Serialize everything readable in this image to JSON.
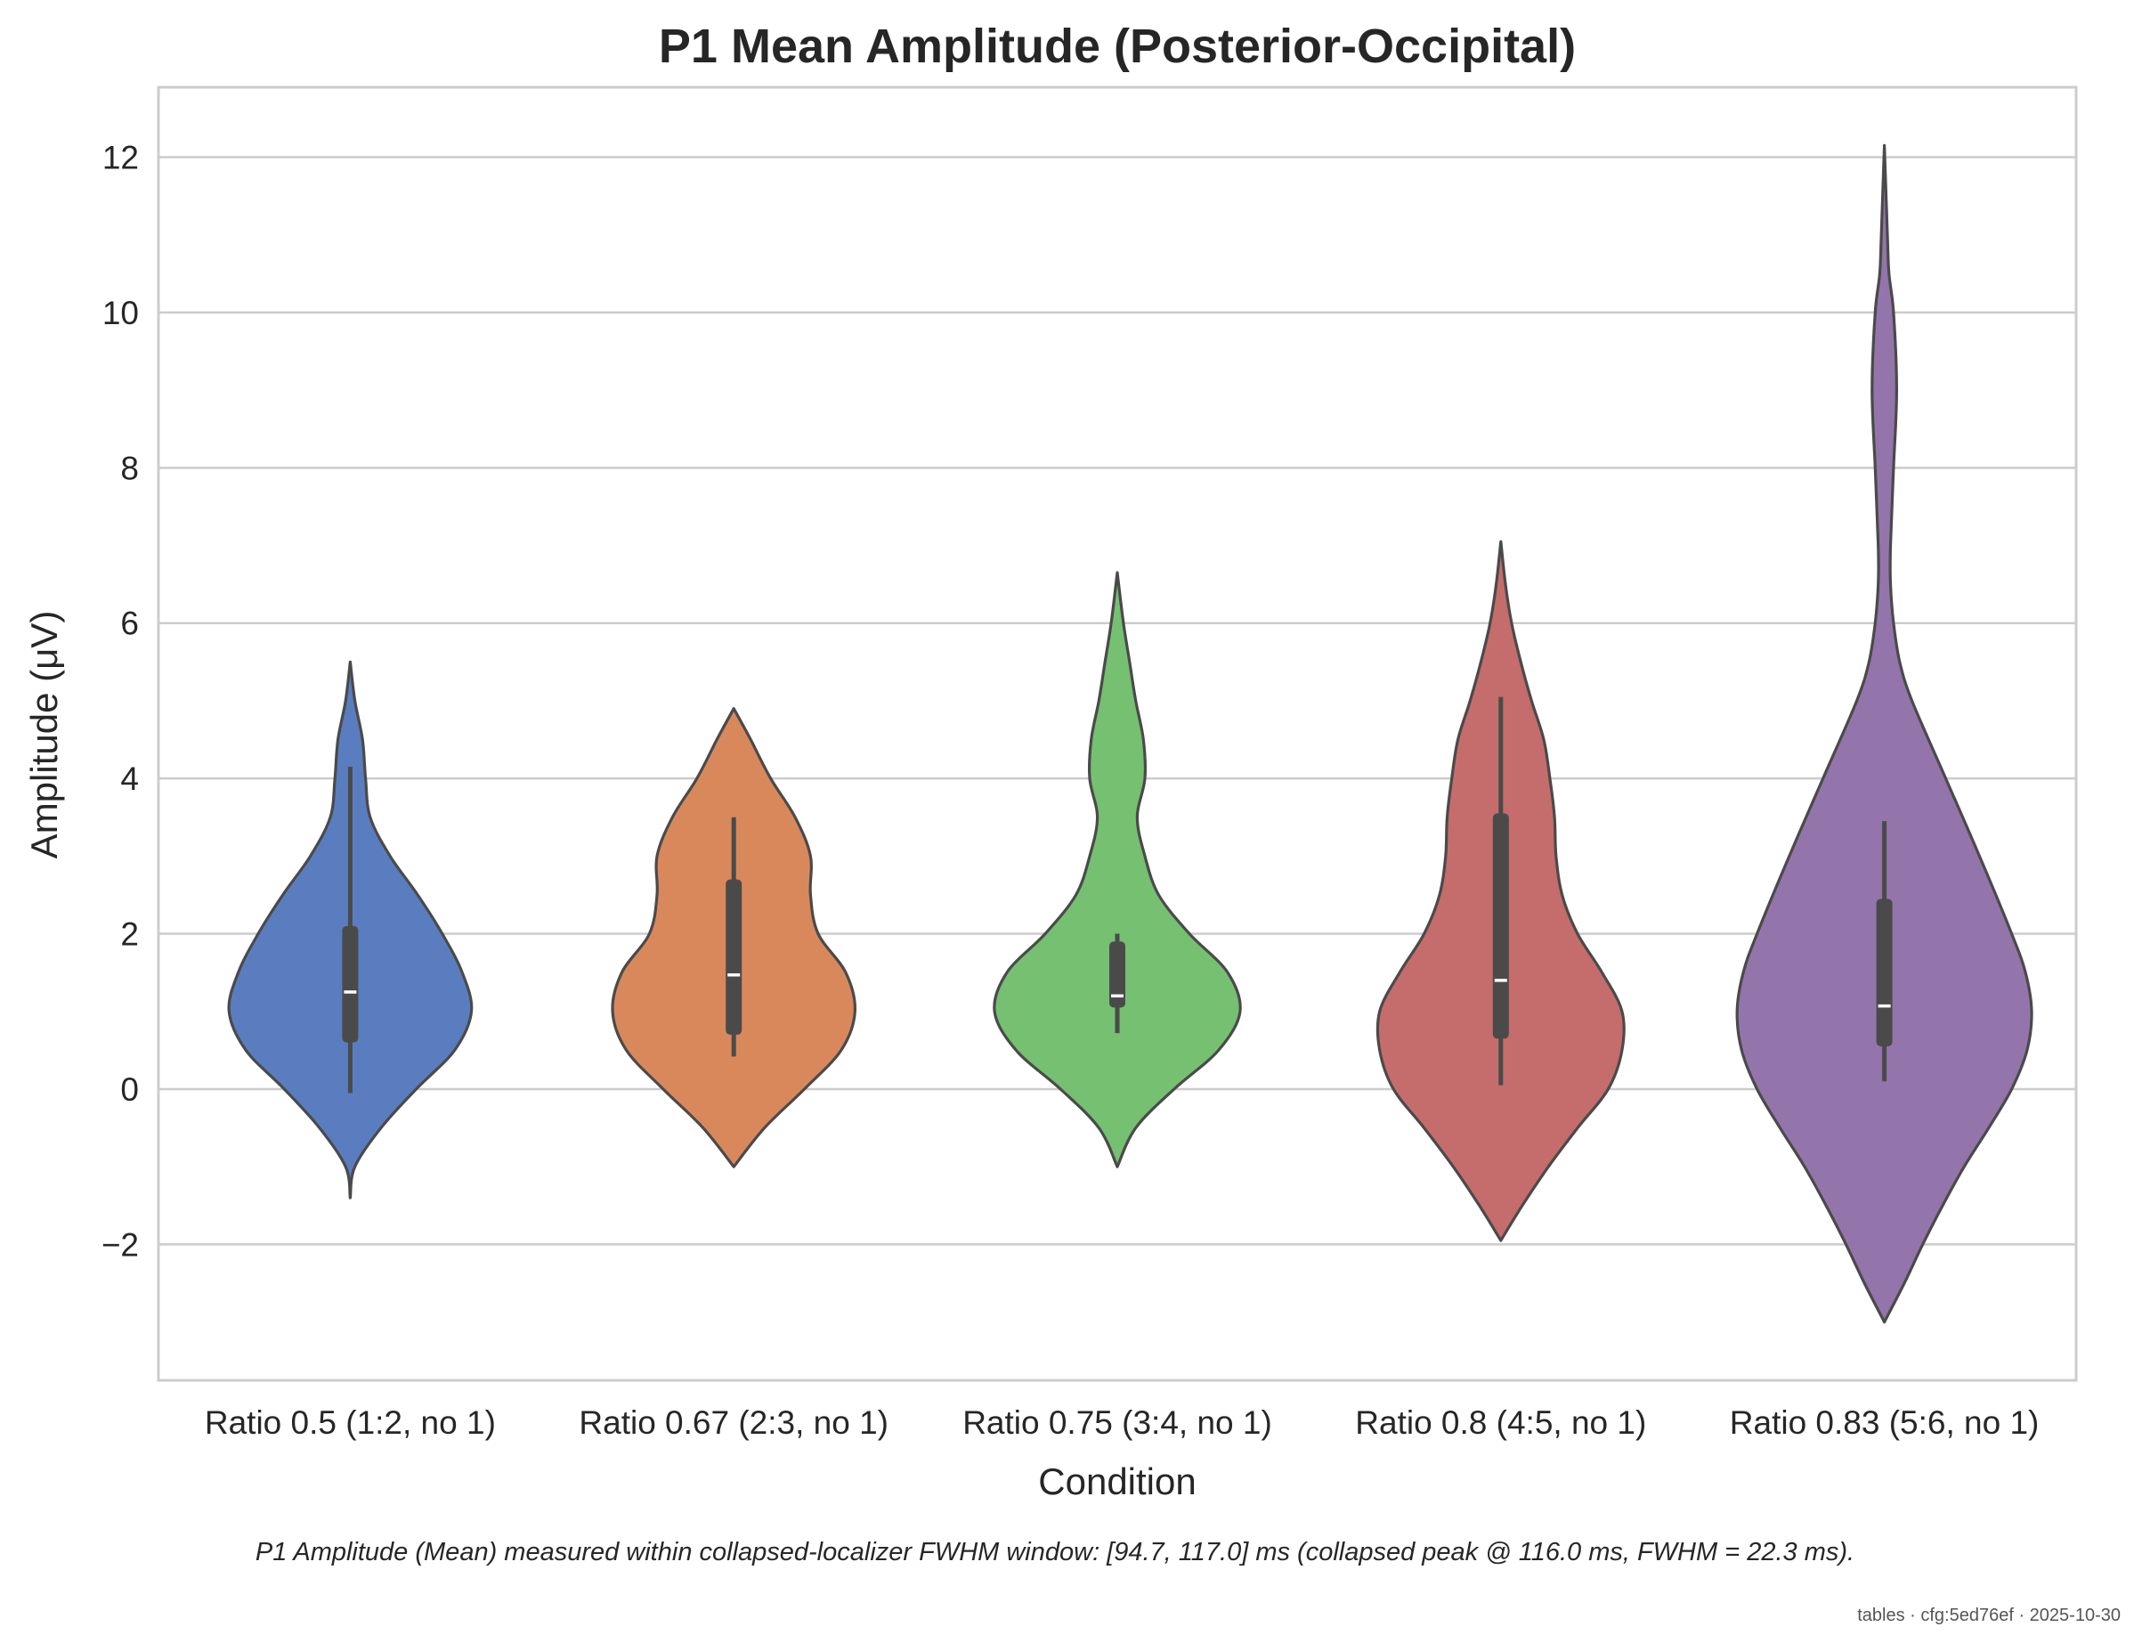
{
  "chart_data": {
    "type": "violin",
    "title": "P1 Mean Amplitude (Posterior-Occipital)",
    "xlabel": "Condition",
    "ylabel": "Amplitude (μV)",
    "ylim": [
      -3.75,
      12.9
    ],
    "yticks": [
      -2,
      0,
      2,
      4,
      6,
      8,
      10,
      12
    ],
    "ytick_labels": [
      "−2",
      "0",
      "2",
      "4",
      "6",
      "8",
      "10",
      "12"
    ],
    "grid": "horizontal",
    "categories": [
      "Ratio 0.5 (1:2, no 1)",
      "Ratio 0.67 (2:3, no 1)",
      "Ratio 0.75 (3:4, no 1)",
      "Ratio 0.8 (4:5, no 1)",
      "Ratio 0.83 (5:6, no 1)"
    ],
    "series": [
      {
        "category": "Ratio 0.5 (1:2, no 1)",
        "color": "#5a7dc0",
        "median": 1.25,
        "q1": 0.6,
        "q3": 2.1,
        "whisker_low": -0.05,
        "whisker_high": 4.15,
        "density": [
          [
            -1.4,
            0
          ],
          [
            -1.0,
            0.03
          ],
          [
            -0.5,
            0.2
          ],
          [
            0,
            0.43
          ],
          [
            0.5,
            0.68
          ],
          [
            1.0,
            0.79
          ],
          [
            1.5,
            0.73
          ],
          [
            2.0,
            0.6
          ],
          [
            2.5,
            0.44
          ],
          [
            3.0,
            0.26
          ],
          [
            3.5,
            0.13
          ],
          [
            4.0,
            0.1
          ],
          [
            4.5,
            0.08
          ],
          [
            5.0,
            0.03
          ],
          [
            5.5,
            0
          ]
        ]
      },
      {
        "category": "Ratio 0.67 (2:3, no 1)",
        "color": "#d9885c",
        "median": 1.47,
        "q1": 0.7,
        "q3": 2.7,
        "whisker_low": 0.42,
        "whisker_high": 3.5,
        "density": [
          [
            -1.0,
            0
          ],
          [
            -0.5,
            0.2
          ],
          [
            0,
            0.46
          ],
          [
            0.5,
            0.7
          ],
          [
            1.0,
            0.79
          ],
          [
            1.5,
            0.73
          ],
          [
            2.0,
            0.55
          ],
          [
            2.5,
            0.5
          ],
          [
            3.0,
            0.5
          ],
          [
            3.5,
            0.4
          ],
          [
            4.0,
            0.24
          ],
          [
            4.5,
            0.11
          ],
          [
            4.9,
            0
          ]
        ]
      },
      {
        "category": "Ratio 0.75 (3:4, no 1)",
        "color": "#75c071",
        "median": 1.2,
        "q1": 1.05,
        "q3": 1.9,
        "whisker_low": 0.72,
        "whisker_high": 2.0,
        "density": [
          [
            -1.0,
            0
          ],
          [
            -0.5,
            0.12
          ],
          [
            0,
            0.37
          ],
          [
            0.5,
            0.66
          ],
          [
            1.0,
            0.8
          ],
          [
            1.5,
            0.72
          ],
          [
            2.0,
            0.47
          ],
          [
            2.5,
            0.27
          ],
          [
            3.0,
            0.18
          ],
          [
            3.5,
            0.13
          ],
          [
            4.0,
            0.18
          ],
          [
            4.5,
            0.17
          ],
          [
            5.0,
            0.12
          ],
          [
            5.5,
            0.08
          ],
          [
            6.0,
            0.04
          ],
          [
            6.65,
            0
          ]
        ]
      },
      {
        "category": "Ratio 0.8 (4:5, no 1)",
        "color": "#c56c6c",
        "median": 1.4,
        "q1": 0.65,
        "q3": 3.55,
        "whisker_low": 0.05,
        "whisker_high": 5.05,
        "density": [
          [
            -1.95,
            0
          ],
          [
            -1.5,
            0.14
          ],
          [
            -1.0,
            0.31
          ],
          [
            -0.5,
            0.5
          ],
          [
            0,
            0.7
          ],
          [
            0.5,
            0.79
          ],
          [
            1.0,
            0.79
          ],
          [
            1.5,
            0.66
          ],
          [
            2.0,
            0.5
          ],
          [
            2.5,
            0.4
          ],
          [
            3.0,
            0.36
          ],
          [
            3.5,
            0.35
          ],
          [
            4.0,
            0.32
          ],
          [
            4.5,
            0.28
          ],
          [
            5.0,
            0.2
          ],
          [
            5.5,
            0.13
          ],
          [
            6.0,
            0.07
          ],
          [
            6.5,
            0.03
          ],
          [
            7.05,
            0
          ]
        ]
      },
      {
        "category": "Ratio 0.83 (5:6, no 1)",
        "color": "#9375ab",
        "median": 1.07,
        "q1": 0.55,
        "q3": 2.45,
        "whisker_low": 0.1,
        "whisker_high": 3.45,
        "density": [
          [
            -3.0,
            0
          ],
          [
            -2.5,
            0.13
          ],
          [
            -2.0,
            0.25
          ],
          [
            -1.5,
            0.38
          ],
          [
            -1.0,
            0.52
          ],
          [
            -0.5,
            0.68
          ],
          [
            0,
            0.83
          ],
          [
            0.5,
            0.93
          ],
          [
            1.0,
            0.96
          ],
          [
            1.5,
            0.92
          ],
          [
            2.0,
            0.83
          ],
          [
            3.0,
            0.62
          ],
          [
            4.0,
            0.4
          ],
          [
            5.0,
            0.18
          ],
          [
            5.5,
            0.1
          ],
          [
            6.0,
            0.06
          ],
          [
            6.5,
            0.04
          ],
          [
            7.0,
            0.04
          ],
          [
            8.0,
            0.06
          ],
          [
            9.0,
            0.08
          ],
          [
            10.0,
            0.06
          ],
          [
            10.5,
            0.03
          ],
          [
            11.0,
            0.02
          ],
          [
            12.15,
            0
          ]
        ]
      }
    ],
    "caption": "P1 Amplitude (Mean) measured within collapsed-localizer FWHM window: [94.7, 117.0] ms (collapsed peak @ 116.0 ms, FWHM = 22.3 ms).",
    "footer": "tables · cfg:5ed76ef · 2025-10-30"
  }
}
